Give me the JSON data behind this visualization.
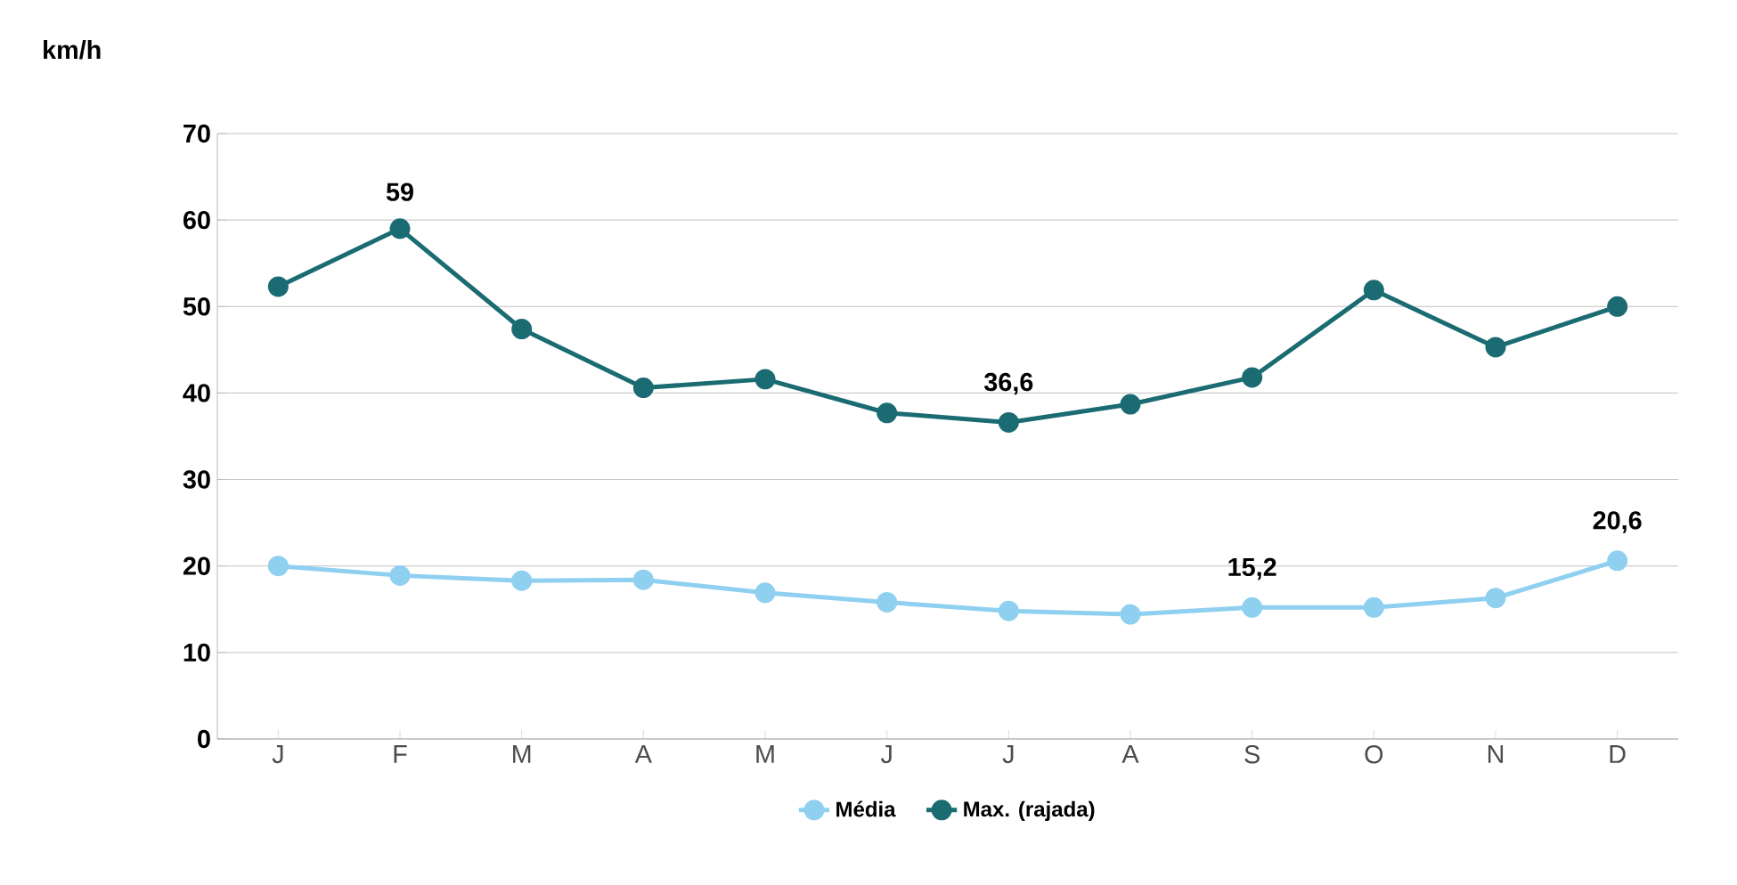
{
  "chart_data": {
    "type": "line",
    "ylabel": "km/h",
    "categories": [
      "J",
      "F",
      "M",
      "A",
      "M",
      "J",
      "J",
      "A",
      "S",
      "O",
      "N",
      "D"
    ],
    "series": [
      {
        "name": "Média",
        "color": "#8fd0f0",
        "values": [
          20.0,
          18.9,
          18.3,
          18.4,
          16.9,
          15.8,
          14.8,
          14.4,
          15.2,
          15.2,
          16.3,
          20.6
        ],
        "value_labels": [
          null,
          null,
          null,
          null,
          null,
          null,
          null,
          null,
          "15,2",
          null,
          null,
          "20,6"
        ]
      },
      {
        "name": "Max. (rajada)",
        "color": "#1a6b72",
        "values": [
          52.3,
          59,
          47.4,
          40.6,
          41.6,
          37.7,
          36.6,
          38.7,
          41.8,
          51.9,
          45.3,
          50.0
        ],
        "value_labels": [
          null,
          "59",
          null,
          null,
          null,
          null,
          "36,6",
          null,
          null,
          null,
          null,
          null
        ]
      }
    ],
    "ylim": [
      0,
      70
    ],
    "yticks": [
      0,
      10,
      20,
      30,
      40,
      50,
      60,
      70
    ],
    "grid": "y",
    "legend": "bottom",
    "marker": "circle",
    "line_style": "solid"
  }
}
